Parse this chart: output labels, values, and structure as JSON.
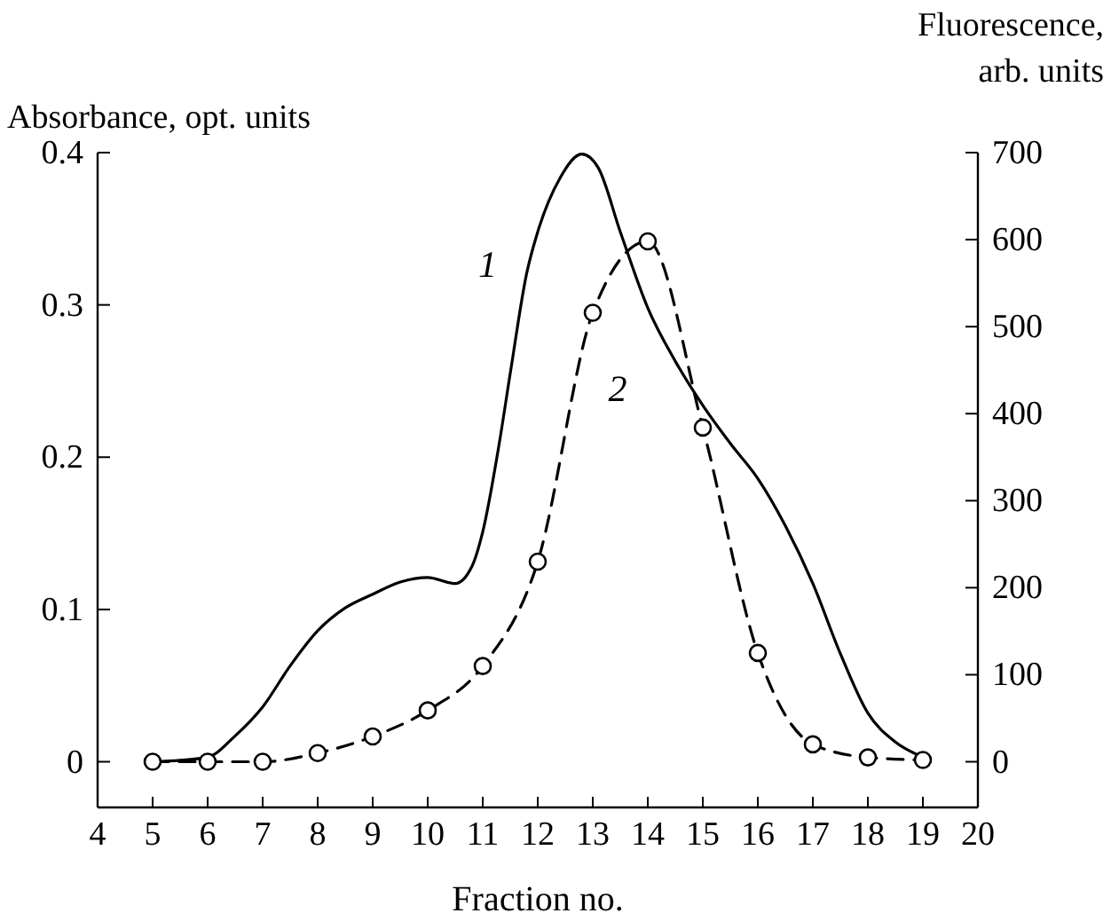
{
  "chart_data": {
    "type": "line",
    "xlabel": "Fraction no.",
    "ylabel": "Absorbance, opt. units",
    "y2label": "Fluorescence,\narb. units",
    "xlim": [
      4,
      20
    ],
    "xticks": [
      4,
      5,
      6,
      7,
      8,
      9,
      10,
      11,
      12,
      13,
      14,
      15,
      16,
      17,
      18,
      19,
      20
    ],
    "ylim": [
      -0.03,
      0.4
    ],
    "yticks": [
      {
        "value": 0,
        "label": "0"
      },
      0.1,
      0.2,
      0.3,
      0.4
    ],
    "y2lim": [
      -52.5,
      700
    ],
    "y2ticks": [
      0,
      100,
      200,
      300,
      400,
      500,
      600,
      700
    ],
    "grid": false,
    "legend": false,
    "series": [
      {
        "name": "1",
        "color": "#000000",
        "marker": "none",
        "line_style": "solid",
        "x": [
          5,
          5.5,
          6,
          6.5,
          7,
          7.5,
          8,
          8.5,
          9,
          9.5,
          10,
          10.5,
          10.8,
          11,
          11.3,
          11.5,
          11.8,
          12,
          12.4,
          12.8,
          13.1,
          13.5,
          14,
          14.5,
          15,
          15.5,
          16,
          16.5,
          17,
          17.5,
          18,
          18.5,
          19
        ],
        "values": [
          0,
          0.001,
          0.003,
          0.017,
          0.036,
          0.063,
          0.086,
          0.101,
          0.11,
          0.118,
          0.121,
          0.117,
          0.128,
          0.151,
          0.209,
          0.255,
          0.321,
          0.348,
          0.383,
          0.399,
          0.39,
          0.348,
          0.298,
          0.263,
          0.234,
          0.209,
          0.186,
          0.155,
          0.117,
          0.071,
          0.032,
          0.013,
          0.003
        ]
      },
      {
        "name": "2",
        "color": "#000000",
        "axis": "y2",
        "marker": "circle",
        "line_style": "dashed",
        "x": [
          5,
          6,
          7,
          8,
          9,
          10,
          11,
          12,
          13,
          14,
          15,
          16,
          17,
          18,
          19
        ],
        "values": [
          0,
          0,
          0,
          10,
          29,
          59,
          110,
          230,
          516,
          598,
          384,
          125,
          20,
          5,
          2
        ]
      }
    ]
  }
}
